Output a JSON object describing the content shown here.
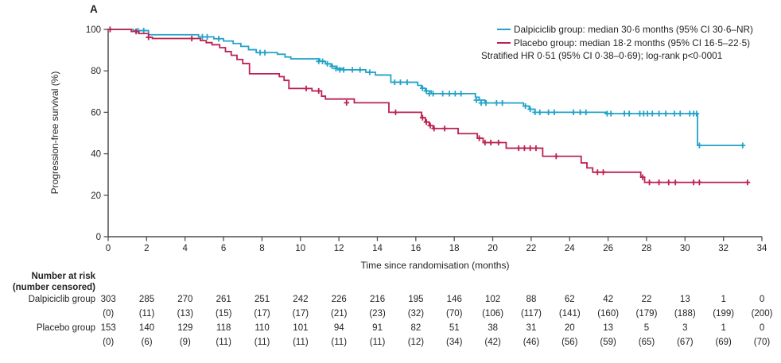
{
  "panel_label": "A",
  "colors": {
    "dalpiciclib": "#23a2c8",
    "placebo": "#bd2150",
    "axis": "#4f4f51",
    "text": "#231f20"
  },
  "legend": {
    "items": [
      {
        "label": "Dalpiciclib group: median 30·6 months (95% CI 30·6–NR)",
        "color": "#23a2c8"
      },
      {
        "label": "Placebo group: median 18·2 months (95% CI 16·5–22·5)",
        "color": "#bd2150"
      }
    ],
    "note": "Stratified HR 0·51 (95% CI 0·38–0·69); log-rank p<0·0001"
  },
  "chart_data": {
    "type": "line",
    "subtype": "kaplan-meier-step",
    "title": "",
    "xlabel": "Time since randomisation (months)",
    "ylabel": "Progression-free survival (%)",
    "xlim": [
      0,
      34
    ],
    "ylim": [
      0,
      100
    ],
    "xticks": [
      0,
      2,
      4,
      6,
      8,
      10,
      12,
      14,
      16,
      18,
      20,
      22,
      24,
      26,
      28,
      30,
      32,
      34
    ],
    "yticks": [
      0,
      20,
      40,
      60,
      80,
      100
    ],
    "grid": false,
    "legend_position": "top-right",
    "series": [
      {
        "name": "Dalpiciclib group",
        "color": "#23a2c8",
        "median_months": "30·6",
        "ci": "30·6–NR",
        "end_x": 33.0,
        "steps": [
          [
            1.3,
            99.4
          ],
          [
            2.1,
            97.4
          ],
          [
            4.7,
            96.4
          ],
          [
            5.5,
            95.5
          ],
          [
            6.0,
            94.4
          ],
          [
            6.5,
            93.2
          ],
          [
            6.9,
            91.8
          ],
          [
            7.3,
            90.2
          ],
          [
            7.7,
            88.8
          ],
          [
            8.8,
            88.0
          ],
          [
            9.2,
            86.7
          ],
          [
            9.5,
            85.8
          ],
          [
            11.0,
            84.6
          ],
          [
            11.3,
            83.4
          ],
          [
            11.6,
            82.2
          ],
          [
            11.9,
            81.1
          ],
          [
            12.2,
            80.5
          ],
          [
            13.4,
            79.3
          ],
          [
            13.9,
            78.0
          ],
          [
            14.7,
            74.5
          ],
          [
            16.1,
            73.0
          ],
          [
            16.3,
            71.6
          ],
          [
            16.5,
            70.3
          ],
          [
            16.8,
            69.0
          ],
          [
            19.1,
            67.3
          ],
          [
            19.3,
            65.9
          ],
          [
            19.6,
            64.5
          ],
          [
            21.6,
            63.0
          ],
          [
            21.9,
            61.5
          ],
          [
            22.2,
            60.0
          ],
          [
            25.9,
            59.4
          ],
          [
            30.65,
            44.0
          ]
        ],
        "censor_marks": [
          [
            1.55,
            99.4
          ],
          [
            1.85,
            99.4
          ],
          [
            4.9,
            96.4
          ],
          [
            5.15,
            96.4
          ],
          [
            5.75,
            95.5
          ],
          [
            7.9,
            88.8
          ],
          [
            8.15,
            88.8
          ],
          [
            10.95,
            84.6
          ],
          [
            11.15,
            84.6
          ],
          [
            11.4,
            83.4
          ],
          [
            11.65,
            82.2
          ],
          [
            11.85,
            81.1
          ],
          [
            12.05,
            80.5
          ],
          [
            12.25,
            80.5
          ],
          [
            12.7,
            80.5
          ],
          [
            13.1,
            80.5
          ],
          [
            13.6,
            79.3
          ],
          [
            14.9,
            74.5
          ],
          [
            15.2,
            74.5
          ],
          [
            15.55,
            74.5
          ],
          [
            16.35,
            71.6
          ],
          [
            16.55,
            70.3
          ],
          [
            16.7,
            69.0
          ],
          [
            16.9,
            69.0
          ],
          [
            17.4,
            69.0
          ],
          [
            17.75,
            69.0
          ],
          [
            18.05,
            69.0
          ],
          [
            18.35,
            69.0
          ],
          [
            19.15,
            65.9
          ],
          [
            19.4,
            64.5
          ],
          [
            19.65,
            64.5
          ],
          [
            20.2,
            64.5
          ],
          [
            20.5,
            64.5
          ],
          [
            21.7,
            63.0
          ],
          [
            21.95,
            61.5
          ],
          [
            22.2,
            60.0
          ],
          [
            22.45,
            60.0
          ],
          [
            22.9,
            60.0
          ],
          [
            23.2,
            60.0
          ],
          [
            24.2,
            60.0
          ],
          [
            24.55,
            60.0
          ],
          [
            24.85,
            60.0
          ],
          [
            25.95,
            59.4
          ],
          [
            26.15,
            59.4
          ],
          [
            26.85,
            59.4
          ],
          [
            27.1,
            59.4
          ],
          [
            27.65,
            59.4
          ],
          [
            27.85,
            59.4
          ],
          [
            28.05,
            59.4
          ],
          [
            28.3,
            59.4
          ],
          [
            28.65,
            59.4
          ],
          [
            29.0,
            59.4
          ],
          [
            29.45,
            59.4
          ],
          [
            29.75,
            59.4
          ],
          [
            30.25,
            59.4
          ],
          [
            30.45,
            59.4
          ],
          [
            30.6,
            59.4
          ],
          [
            30.75,
            44.0
          ],
          [
            33.0,
            44.0
          ]
        ]
      },
      {
        "name": "Placebo group",
        "color": "#bd2150",
        "median_months": "18·2",
        "ci": "16·5–22·5",
        "end_x": 33.25,
        "steps": [
          [
            1.2,
            99.0
          ],
          [
            1.6,
            98.0
          ],
          [
            2.1,
            96.2
          ],
          [
            2.3,
            95.6
          ],
          [
            4.8,
            94.6
          ],
          [
            5.1,
            93.6
          ],
          [
            5.4,
            92.6
          ],
          [
            5.8,
            91.2
          ],
          [
            6.1,
            89.3
          ],
          [
            6.4,
            87.5
          ],
          [
            6.7,
            85.5
          ],
          [
            7.0,
            83.5
          ],
          [
            7.35,
            78.6
          ],
          [
            8.9,
            77.2
          ],
          [
            9.15,
            75.4
          ],
          [
            9.4,
            71.5
          ],
          [
            10.6,
            70.3
          ],
          [
            11.1,
            67.8
          ],
          [
            11.3,
            66.4
          ],
          [
            12.8,
            64.6
          ],
          [
            14.6,
            60.0
          ],
          [
            16.3,
            57.4
          ],
          [
            16.5,
            55.3
          ],
          [
            16.7,
            53.6
          ],
          [
            16.9,
            52.2
          ],
          [
            18.2,
            49.7
          ],
          [
            19.2,
            47.5
          ],
          [
            19.5,
            45.4
          ],
          [
            20.7,
            42.7
          ],
          [
            22.6,
            38.8
          ],
          [
            24.6,
            35.6
          ],
          [
            24.9,
            33.2
          ],
          [
            25.2,
            31.1
          ],
          [
            27.7,
            28.7
          ],
          [
            27.9,
            26.2
          ]
        ],
        "censor_marks": [
          [
            0.1,
            100
          ],
          [
            1.45,
            99.0
          ],
          [
            2.1,
            96.2
          ],
          [
            4.35,
            95.6
          ],
          [
            10.3,
            71.5
          ],
          [
            10.95,
            70.3
          ],
          [
            12.4,
            64.6
          ],
          [
            14.95,
            60.0
          ],
          [
            16.35,
            57.4
          ],
          [
            16.55,
            55.3
          ],
          [
            16.75,
            53.6
          ],
          [
            16.95,
            52.2
          ],
          [
            17.5,
            52.2
          ],
          [
            19.3,
            47.5
          ],
          [
            19.6,
            45.4
          ],
          [
            19.9,
            45.4
          ],
          [
            20.3,
            45.4
          ],
          [
            21.35,
            42.7
          ],
          [
            21.65,
            42.7
          ],
          [
            21.95,
            42.7
          ],
          [
            22.25,
            42.7
          ],
          [
            23.3,
            38.8
          ],
          [
            25.45,
            31.1
          ],
          [
            25.75,
            31.1
          ],
          [
            27.8,
            28.7
          ],
          [
            28.15,
            26.2
          ],
          [
            28.65,
            26.2
          ],
          [
            29.15,
            26.2
          ],
          [
            29.5,
            26.2
          ],
          [
            30.45,
            26.2
          ],
          [
            30.75,
            26.2
          ],
          [
            33.25,
            26.2
          ]
        ]
      }
    ]
  },
  "number_at_risk": {
    "header_line1": "Number at risk",
    "header_line2": "(number censored)",
    "rows": [
      {
        "label": "Dalpiciclib group",
        "at_risk": [
          303,
          285,
          270,
          261,
          251,
          242,
          226,
          216,
          195,
          146,
          102,
          88,
          62,
          42,
          22,
          13,
          1,
          0
        ],
        "censored": [
          "(0)",
          "(11)",
          "(13)",
          "(15)",
          "(17)",
          "(17)",
          "(21)",
          "(23)",
          "(32)",
          "(70)",
          "(106)",
          "(117)",
          "(141)",
          "(160)",
          "(179)",
          "(188)",
          "(199)",
          "(200)"
        ]
      },
      {
        "label": "Placebo group",
        "at_risk": [
          153,
          140,
          129,
          118,
          110,
          101,
          94,
          91,
          82,
          51,
          38,
          31,
          20,
          13,
          5,
          3,
          1,
          0
        ],
        "censored": [
          "(0)",
          "(6)",
          "(9)",
          "(11)",
          "(11)",
          "(11)",
          "(11)",
          "(11)",
          "(12)",
          "(34)",
          "(42)",
          "(46)",
          "(56)",
          "(59)",
          "(65)",
          "(67)",
          "(69)",
          "(70)"
        ]
      }
    ]
  }
}
